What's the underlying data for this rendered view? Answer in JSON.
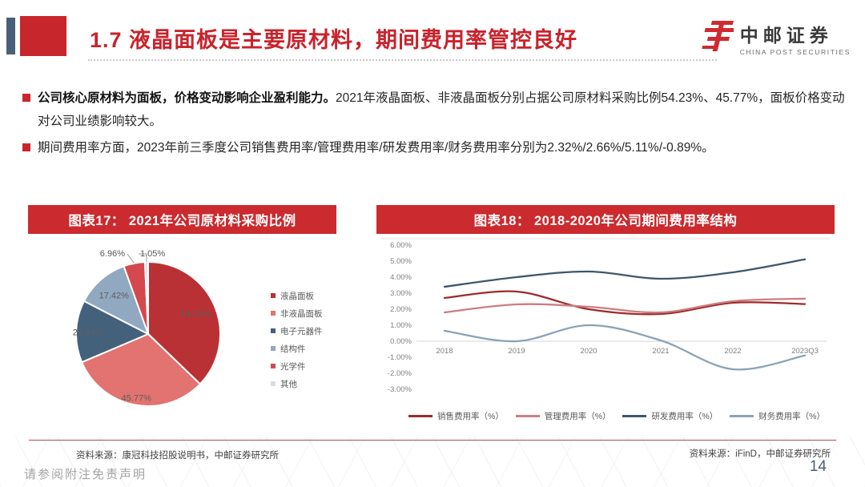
{
  "header": {
    "title": "1.7 液晶面板是主要原材料，期间费用率管控良好",
    "logo_cn": "中邮证券",
    "logo_en": "CHINA POST SECURITIES"
  },
  "bullets": [
    {
      "bold": "公司核心原材料为面板，价格变动影响企业盈利能力。",
      "rest": "2021年液晶面板、非液晶面板分别占据公司原材料采购比例54.23%、45.77%，面板价格变动对公司业绩影响较大。"
    },
    {
      "bold": "",
      "rest": "期间费用率方面，2023年前三季度公司销售费用率/管理费用率/研发费用率/财务费用率分别为2.32%/2.66%/5.11%/-0.89%。"
    }
  ],
  "figures": {
    "left_title": "图表17：  2021年公司原材料采购比例",
    "right_title": "图表18：  2018-2020年公司期间费用率结构"
  },
  "chart_data": [
    {
      "type": "pie",
      "title": "2021年公司原材料采购比例",
      "slices": [
        {
          "label": "液晶面板",
          "value": 54.23,
          "display": "54.23%",
          "color": "#b93134",
          "label_mode": "inside",
          "label_r": 0.72
        },
        {
          "label": "非液晶面板",
          "value": 45.77,
          "display": "45.77%",
          "color": "#e27370",
          "label_mode": "inside",
          "label_r": 0.9
        },
        {
          "label": "电子元器件",
          "value": 20.34,
          "display": "20.34%",
          "color": "#44617c",
          "label_mode": "inside",
          "label_r": 0.84
        },
        {
          "label": "结构件",
          "value": 17.42,
          "display": "17.42%",
          "color": "#91a8c1",
          "label_mode": "inside",
          "label_r": 0.72
        },
        {
          "label": "光学件",
          "value": 6.96,
          "display": "6.96%",
          "color": "#d4494e",
          "label_mode": "callout-left"
        },
        {
          "label": "其他",
          "value": 1.05,
          "display": "1.05%",
          "color": "#d8dde2",
          "label_mode": "callout-right"
        }
      ],
      "legend_position": "right"
    },
    {
      "type": "line",
      "x": [
        "2018",
        "2019",
        "2020",
        "2021",
        "2022",
        "2023Q3"
      ],
      "series": [
        {
          "name": "销售费用率（%）",
          "color": "#9e2a2b",
          "values": [
            2.7,
            3.1,
            2.0,
            1.7,
            2.4,
            2.32
          ]
        },
        {
          "name": "管理费用率（%）",
          "color": "#cb7e83",
          "values": [
            1.8,
            2.3,
            2.15,
            1.8,
            2.5,
            2.66
          ]
        },
        {
          "name": "研发费用率（%）",
          "color": "#3f566d",
          "values": [
            3.4,
            4.0,
            4.35,
            3.9,
            4.3,
            5.11
          ]
        },
        {
          "name": "财务费用率（%）",
          "color": "#8aa2b6",
          "values": [
            0.65,
            0.0,
            1.0,
            0.05,
            -1.75,
            -0.89
          ]
        }
      ],
      "ylim": [
        -3,
        6
      ],
      "yticks": [
        "6.00%",
        "5.00%",
        "4.00%",
        "3.00%",
        "2.00%",
        "1.00%",
        "0.00%",
        "-1.00%",
        "-2.00%",
        "-3.00%"
      ],
      "legend_position": "bottom",
      "grid": "zero-line-only"
    }
  ],
  "footer": {
    "source_left": "资料来源：康冠科技招股说明书，中邮证券研究所",
    "source_right": "资料来源：iFinD，中邮证券研究所",
    "page": "14",
    "disclaimer": "请参阅附注免责声明"
  },
  "colors": {
    "accent_red": "#c8262d",
    "accent_slate": "#49607a",
    "titlebar_red": "#cb2a2e"
  }
}
